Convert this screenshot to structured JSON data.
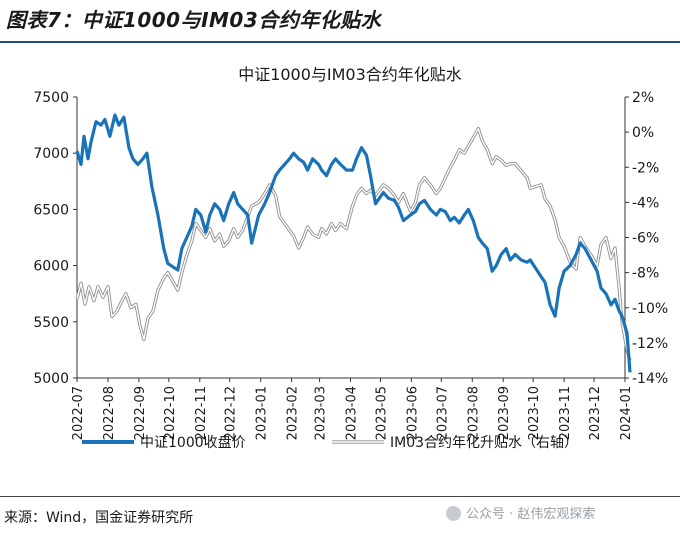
{
  "figure": {
    "title": "图表7：中证1000与IM03合约年化贴水",
    "source": "来源：Wind，国金证券研究所",
    "watermark": "公众号 · 赵伟宏观探索"
  },
  "colors": {
    "left_series": "#1a73b8",
    "right_series": "#b4b4b4",
    "title_rule": "#1f4e79",
    "axis": "#333333"
  },
  "chart_data": {
    "type": "line",
    "title": "中证1000与IM03合约年化贴水",
    "x_tick_labels": [
      "2022-07",
      "2022-08",
      "2022-09",
      "2022-10",
      "2022-11",
      "2022-12",
      "2023-01",
      "2023-02",
      "2023-03",
      "2023-04",
      "2023-05",
      "2023-06",
      "2023-07",
      "2023-08",
      "2023-09",
      "2023-10",
      "2023-11",
      "2023-12",
      "2024-01"
    ],
    "x_range": [
      "2022-07",
      "2024-01"
    ],
    "y_left": {
      "min": 5000,
      "max": 7500,
      "step": 500,
      "tick_labels": [
        "5000",
        "5500",
        "6000",
        "6500",
        "7000",
        "7500"
      ]
    },
    "y_right": {
      "min": -14,
      "max": 2,
      "step": 2,
      "tick_labels": [
        "-14%",
        "-12%",
        "-10%",
        "-8%",
        "-6%",
        "-4%",
        "-2%",
        "0%",
        "2%"
      ]
    },
    "grid": false,
    "legend_position": "bottom",
    "series": [
      {
        "name": "中证1000收盘价",
        "axis": "left",
        "unit": "index points",
        "points": [
          [
            "2022-07-01",
            7020
          ],
          [
            "2022-07-05",
            6900
          ],
          [
            "2022-07-08",
            7150
          ],
          [
            "2022-07-12",
            6950
          ],
          [
            "2022-07-15",
            7100
          ],
          [
            "2022-07-20",
            7280
          ],
          [
            "2022-07-25",
            7250
          ],
          [
            "2022-07-29",
            7300
          ],
          [
            "2022-08-03",
            7150
          ],
          [
            "2022-08-08",
            7340
          ],
          [
            "2022-08-12",
            7250
          ],
          [
            "2022-08-17",
            7320
          ],
          [
            "2022-08-22",
            7050
          ],
          [
            "2022-08-26",
            6950
          ],
          [
            "2022-08-31",
            6900
          ],
          [
            "2022-09-05",
            6950
          ],
          [
            "2022-09-09",
            7000
          ],
          [
            "2022-09-14",
            6700
          ],
          [
            "2022-09-20",
            6450
          ],
          [
            "2022-09-26",
            6150
          ],
          [
            "2022-09-30",
            6020
          ],
          [
            "2022-10-10",
            5960
          ],
          [
            "2022-10-14",
            6150
          ],
          [
            "2022-10-19",
            6250
          ],
          [
            "2022-10-24",
            6350
          ],
          [
            "2022-10-28",
            6500
          ],
          [
            "2022-11-02",
            6450
          ],
          [
            "2022-11-07",
            6300
          ],
          [
            "2022-11-11",
            6450
          ],
          [
            "2022-11-16",
            6550
          ],
          [
            "2022-11-21",
            6500
          ],
          [
            "2022-11-25",
            6400
          ],
          [
            "2022-11-30",
            6550
          ],
          [
            "2022-12-05",
            6650
          ],
          [
            "2022-12-09",
            6550
          ],
          [
            "2022-12-14",
            6500
          ],
          [
            "2022-12-19",
            6450
          ],
          [
            "2022-12-23",
            6200
          ],
          [
            "2022-12-30",
            6450
          ],
          [
            "2023-01-05",
            6550
          ],
          [
            "2023-01-10",
            6650
          ],
          [
            "2023-01-16",
            6800
          ],
          [
            "2023-01-20",
            6850
          ],
          [
            "2023-01-30",
            6950
          ],
          [
            "2023-02-03",
            7000
          ],
          [
            "2023-02-08",
            6950
          ],
          [
            "2023-02-13",
            6920
          ],
          [
            "2023-02-17",
            6850
          ],
          [
            "2023-02-22",
            6950
          ],
          [
            "2023-02-28",
            6900
          ],
          [
            "2023-03-03",
            6850
          ],
          [
            "2023-03-08",
            6800
          ],
          [
            "2023-03-13",
            6900
          ],
          [
            "2023-03-17",
            6950
          ],
          [
            "2023-03-22",
            6900
          ],
          [
            "2023-03-28",
            6850
          ],
          [
            "2023-04-03",
            6850
          ],
          [
            "2023-04-07",
            6950
          ],
          [
            "2023-04-12",
            7050
          ],
          [
            "2023-04-17",
            6980
          ],
          [
            "2023-04-21",
            6800
          ],
          [
            "2023-04-26",
            6550
          ],
          [
            "2023-05-04",
            6650
          ],
          [
            "2023-05-09",
            6600
          ],
          [
            "2023-05-15",
            6580
          ],
          [
            "2023-05-19",
            6520
          ],
          [
            "2023-05-24",
            6400
          ],
          [
            "2023-05-31",
            6450
          ],
          [
            "2023-06-05",
            6480
          ],
          [
            "2023-06-09",
            6550
          ],
          [
            "2023-06-14",
            6580
          ],
          [
            "2023-06-20",
            6500
          ],
          [
            "2023-06-26",
            6450
          ],
          [
            "2023-06-30",
            6500
          ],
          [
            "2023-07-05",
            6480
          ],
          [
            "2023-07-10",
            6400
          ],
          [
            "2023-07-14",
            6430
          ],
          [
            "2023-07-19",
            6380
          ],
          [
            "2023-07-24",
            6450
          ],
          [
            "2023-07-28",
            6500
          ],
          [
            "2023-08-02",
            6400
          ],
          [
            "2023-08-07",
            6250
          ],
          [
            "2023-08-11",
            6200
          ],
          [
            "2023-08-16",
            6150
          ],
          [
            "2023-08-21",
            5950
          ],
          [
            "2023-08-25",
            6000
          ],
          [
            "2023-08-30",
            6100
          ],
          [
            "2023-09-04",
            6150
          ],
          [
            "2023-09-08",
            6050
          ],
          [
            "2023-09-13",
            6100
          ],
          [
            "2023-09-19",
            6050
          ],
          [
            "2023-09-25",
            6030
          ],
          [
            "2023-09-28",
            6050
          ],
          [
            "2023-10-09",
            5900
          ],
          [
            "2023-10-13",
            5850
          ],
          [
            "2023-10-18",
            5650
          ],
          [
            "2023-10-23",
            5550
          ],
          [
            "2023-10-27",
            5800
          ],
          [
            "2023-11-01",
            5950
          ],
          [
            "2023-11-07",
            6000
          ],
          [
            "2023-11-13",
            6100
          ],
          [
            "2023-11-17",
            6200
          ],
          [
            "2023-11-22",
            6150
          ],
          [
            "2023-11-28",
            6050
          ],
          [
            "2023-12-04",
            5950
          ],
          [
            "2023-12-08",
            5800
          ],
          [
            "2023-12-13",
            5750
          ],
          [
            "2023-12-18",
            5650
          ],
          [
            "2023-12-22",
            5700
          ],
          [
            "2023-12-26",
            5600
          ],
          [
            "2023-12-29",
            5550
          ],
          [
            "2024-01-03",
            5400
          ],
          [
            "2024-01-06",
            5050
          ]
        ]
      },
      {
        "name": "IM03合约年化升贴水（右轴）",
        "axis": "right",
        "unit": "percent",
        "points": [
          [
            "2022-07-01",
            -9.5
          ],
          [
            "2022-07-05",
            -8.6
          ],
          [
            "2022-07-09",
            -9.8
          ],
          [
            "2022-07-13",
            -8.8
          ],
          [
            "2022-07-18",
            -9.6
          ],
          [
            "2022-07-22",
            -8.8
          ],
          [
            "2022-07-27",
            -9.4
          ],
          [
            "2022-08-01",
            -8.8
          ],
          [
            "2022-08-05",
            -10.5
          ],
          [
            "2022-08-10",
            -10.2
          ],
          [
            "2022-08-15",
            -9.6
          ],
          [
            "2022-08-19",
            -9.2
          ],
          [
            "2022-08-24",
            -10.0
          ],
          [
            "2022-08-29",
            -9.8
          ],
          [
            "2022-09-02",
            -11.0
          ],
          [
            "2022-09-06",
            -11.8
          ],
          [
            "2022-09-10",
            -10.6
          ],
          [
            "2022-09-15",
            -10.2
          ],
          [
            "2022-09-20",
            -9.0
          ],
          [
            "2022-09-26",
            -8.3
          ],
          [
            "2022-09-30",
            -8.0
          ],
          [
            "2022-10-10",
            -9.0
          ],
          [
            "2022-10-14",
            -8.0
          ],
          [
            "2022-10-19",
            -7.0
          ],
          [
            "2022-10-24",
            -6.2
          ],
          [
            "2022-10-28",
            -5.2
          ],
          [
            "2022-11-02",
            -5.6
          ],
          [
            "2022-11-07",
            -6.0
          ],
          [
            "2022-11-11",
            -5.5
          ],
          [
            "2022-11-16",
            -6.2
          ],
          [
            "2022-11-21",
            -5.8
          ],
          [
            "2022-11-25",
            -6.5
          ],
          [
            "2022-11-30",
            -6.2
          ],
          [
            "2022-12-05",
            -5.5
          ],
          [
            "2022-12-09",
            -6.0
          ],
          [
            "2022-12-14",
            -5.6
          ],
          [
            "2022-12-19",
            -4.8
          ],
          [
            "2022-12-23",
            -4.2
          ],
          [
            "2022-12-30",
            -4.0
          ],
          [
            "2023-01-05",
            -3.5
          ],
          [
            "2023-01-10",
            -3.0
          ],
          [
            "2023-01-16",
            -3.6
          ],
          [
            "2023-01-20",
            -4.8
          ],
          [
            "2023-01-30",
            -5.6
          ],
          [
            "2023-02-03",
            -5.9
          ],
          [
            "2023-02-08",
            -6.6
          ],
          [
            "2023-02-13",
            -6.0
          ],
          [
            "2023-02-17",
            -5.4
          ],
          [
            "2023-02-22",
            -5.8
          ],
          [
            "2023-02-28",
            -6.0
          ],
          [
            "2023-03-03",
            -5.5
          ],
          [
            "2023-03-08",
            -5.8
          ],
          [
            "2023-03-13",
            -5.2
          ],
          [
            "2023-03-17",
            -5.6
          ],
          [
            "2023-03-22",
            -5.2
          ],
          [
            "2023-03-28",
            -5.5
          ],
          [
            "2023-04-03",
            -4.2
          ],
          [
            "2023-04-07",
            -3.6
          ],
          [
            "2023-04-12",
            -3.2
          ],
          [
            "2023-04-17",
            -3.5
          ],
          [
            "2023-04-21",
            -3.3
          ],
          [
            "2023-04-26",
            -3.6
          ],
          [
            "2023-05-04",
            -3.0
          ],
          [
            "2023-05-09",
            -3.2
          ],
          [
            "2023-05-15",
            -3.6
          ],
          [
            "2023-05-19",
            -4.0
          ],
          [
            "2023-05-24",
            -3.5
          ],
          [
            "2023-05-31",
            -4.5
          ],
          [
            "2023-06-05",
            -4.0
          ],
          [
            "2023-06-09",
            -3.0
          ],
          [
            "2023-06-14",
            -2.6
          ],
          [
            "2023-06-20",
            -3.0
          ],
          [
            "2023-06-26",
            -3.5
          ],
          [
            "2023-06-30",
            -3.2
          ],
          [
            "2023-07-05",
            -2.6
          ],
          [
            "2023-07-10",
            -2.0
          ],
          [
            "2023-07-14",
            -1.6
          ],
          [
            "2023-07-19",
            -1.0
          ],
          [
            "2023-07-24",
            -1.2
          ],
          [
            "2023-07-28",
            -0.8
          ],
          [
            "2023-08-02",
            -0.3
          ],
          [
            "2023-08-07",
            0.2
          ],
          [
            "2023-08-11",
            -0.5
          ],
          [
            "2023-08-16",
            -1.0
          ],
          [
            "2023-08-21",
            -1.8
          ],
          [
            "2023-08-25",
            -1.4
          ],
          [
            "2023-08-30",
            -1.6
          ],
          [
            "2023-09-04",
            -1.9
          ],
          [
            "2023-09-08",
            -1.8
          ],
          [
            "2023-09-13",
            -1.8
          ],
          [
            "2023-09-19",
            -2.2
          ],
          [
            "2023-09-25",
            -2.6
          ],
          [
            "2023-09-28",
            -3.2
          ],
          [
            "2023-10-09",
            -3.0
          ],
          [
            "2023-10-13",
            -3.8
          ],
          [
            "2023-10-18",
            -4.2
          ],
          [
            "2023-10-23",
            -5.0
          ],
          [
            "2023-10-27",
            -6.0
          ],
          [
            "2023-11-01",
            -6.5
          ],
          [
            "2023-11-07",
            -7.4
          ],
          [
            "2023-11-13",
            -7.8
          ],
          [
            "2023-11-17",
            -6.0
          ],
          [
            "2023-11-22",
            -6.5
          ],
          [
            "2023-11-28",
            -7.0
          ],
          [
            "2023-12-04",
            -7.6
          ],
          [
            "2023-12-08",
            -6.4
          ],
          [
            "2023-12-13",
            -6.0
          ],
          [
            "2023-12-18",
            -7.2
          ],
          [
            "2023-12-22",
            -6.6
          ],
          [
            "2023-12-26",
            -8.8
          ],
          [
            "2023-12-29",
            -10.8
          ],
          [
            "2024-01-03",
            -12.4
          ],
          [
            "2024-01-06",
            -13.0
          ]
        ]
      }
    ]
  }
}
